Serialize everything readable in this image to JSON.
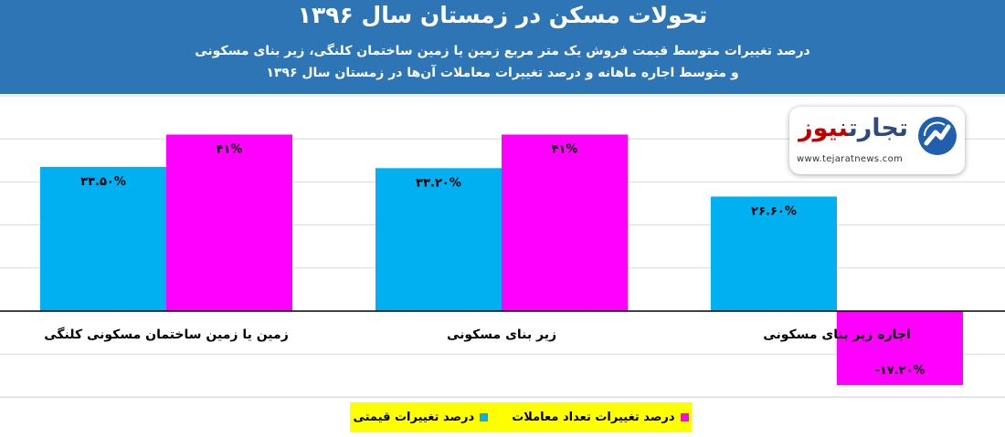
{
  "header": {
    "title": "تحولات مسکن در زمستان سال ۱۳۹۶",
    "subtitle_line1": "درصد تغییرات متوسط قیمت فروش یک متر مربع زمین یا زمین ساختمان کلنگی، زیر بنای مسکونی",
    "subtitle_line2": "و متوسط اجاره ماهانه و درصد تغییرات معاملات آن‌ها در زمستان سال ۱۳۹۶"
  },
  "logo": {
    "text_part1": "تجارت",
    "text_part2": "نیوز",
    "url": "www.tejaratnews.com"
  },
  "colors": {
    "header_bg": "#2e75b6",
    "price_series": "#00b0f0",
    "transactions_series": "#ff00ff",
    "legend_bg": "#ffff00",
    "logo_red": "#c00000"
  },
  "chart_data": {
    "type": "bar",
    "title": "تحولات مسکن در زمستان سال ۱۳۹۶",
    "categories": [
      "زمین یا زمین ساختمان مسکونی کلنگی",
      "زیر بنای مسکونی",
      "اجاره زیر بنای مسکونی"
    ],
    "series": [
      {
        "name": "درصد تغییرات قیمتی",
        "color": "#00b0f0",
        "values": [
          33.5,
          33.2,
          26.6
        ],
        "labels": [
          "۳۳.۵۰%",
          "۳۳.۲۰%",
          "۲۶.۶۰%"
        ]
      },
      {
        "name": "درصد تغییرات تعداد معاملات",
        "color": "#ff00ff",
        "values": [
          41,
          41,
          -17.2
        ],
        "labels": [
          "۴۱%",
          "۴۱%",
          "-۱۷.۲۰%"
        ]
      }
    ],
    "ylim": [
      -20,
      50
    ],
    "grid": true,
    "legend_position": "bottom"
  },
  "legend": {
    "items": [
      {
        "label": "درصد تغییرات تعداد معاملات",
        "color": "#ff00ff"
      },
      {
        "label": "درصد تغییرات قیمتی",
        "color": "#00b0f0"
      }
    ]
  }
}
